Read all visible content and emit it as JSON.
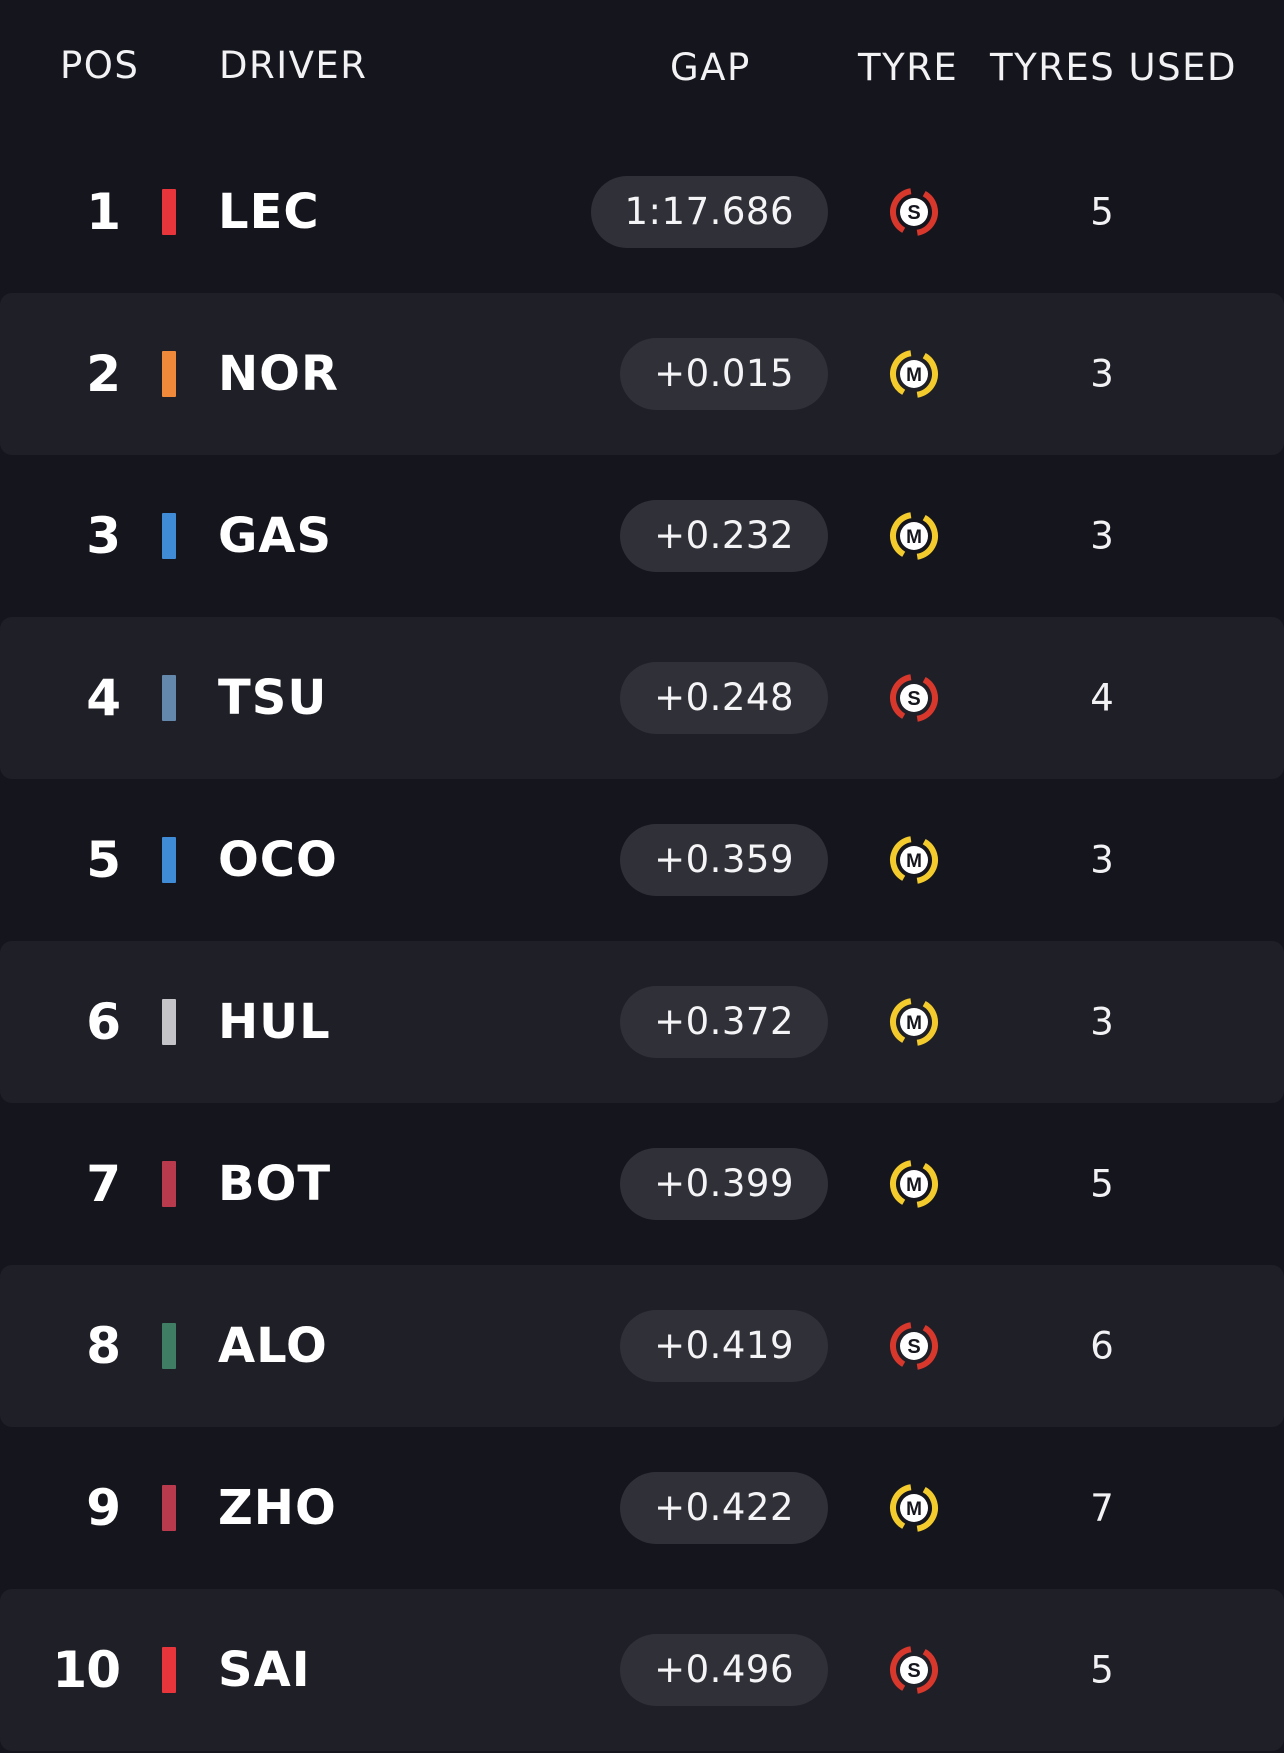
{
  "header": {
    "pos": "POS",
    "driver": "DRIVER",
    "gap": "GAP",
    "tyre": "TYRE",
    "tyres_used": "TYRES USED"
  },
  "colors": {
    "soft": "#d8372c",
    "medium": "#f3cb2d"
  },
  "rows": [
    {
      "pos": "1",
      "code": "LEC",
      "team_color": "#e8353b",
      "gap": "1:17.686",
      "tyre": "S",
      "tyres_used": "5"
    },
    {
      "pos": "2",
      "code": "NOR",
      "team_color": "#f0893a",
      "gap": "+0.015",
      "tyre": "M",
      "tyres_used": "3"
    },
    {
      "pos": "3",
      "code": "GAS",
      "team_color": "#3f8bd6",
      "gap": "+0.232",
      "tyre": "M",
      "tyres_used": "3"
    },
    {
      "pos": "4",
      "code": "TSU",
      "team_color": "#6488ac",
      "gap": "+0.248",
      "tyre": "S",
      "tyres_used": "4"
    },
    {
      "pos": "5",
      "code": "OCO",
      "team_color": "#3f8bd6",
      "gap": "+0.359",
      "tyre": "M",
      "tyres_used": "3"
    },
    {
      "pos": "6",
      "code": "HUL",
      "team_color": "#c4c4c8",
      "gap": "+0.372",
      "tyre": "M",
      "tyres_used": "3"
    },
    {
      "pos": "7",
      "code": "BOT",
      "team_color": "#b93a4c",
      "gap": "+0.399",
      "tyre": "M",
      "tyres_used": "5"
    },
    {
      "pos": "8",
      "code": "ALO",
      "team_color": "#3f7e64",
      "gap": "+0.419",
      "tyre": "S",
      "tyres_used": "6"
    },
    {
      "pos": "9",
      "code": "ZHO",
      "team_color": "#b93a4c",
      "gap": "+0.422",
      "tyre": "M",
      "tyres_used": "7"
    },
    {
      "pos": "10",
      "code": "SAI",
      "team_color": "#e8353b",
      "gap": "+0.496",
      "tyre": "S",
      "tyres_used": "5"
    }
  ]
}
